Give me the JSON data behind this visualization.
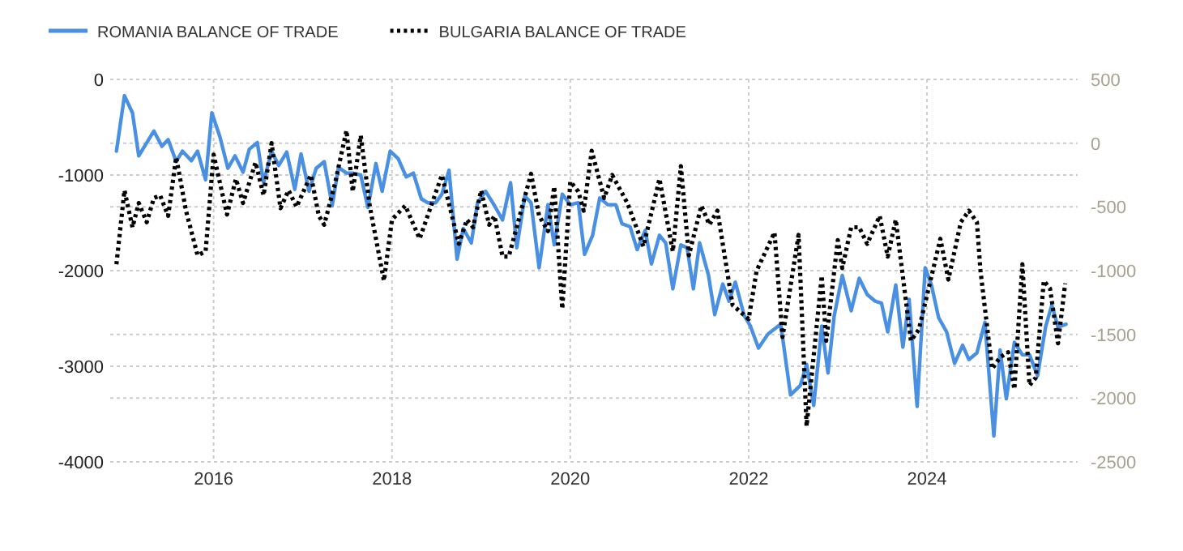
{
  "chart_data": {
    "type": "line",
    "grid": true,
    "legend": "top left",
    "xlim": [
      2014.84,
      2025.69
    ],
    "xticks": [
      2016,
      2018,
      2020,
      2022,
      2024
    ],
    "ylim": [
      -4000,
      0
    ],
    "yticks": [
      0,
      -1000,
      -2000,
      -3000,
      -4000
    ],
    "y2lim": [
      -2500,
      500
    ],
    "y2ticks": [
      500,
      0,
      -500,
      -1000,
      -1500,
      -2000,
      -2500
    ],
    "series": [
      {
        "name": "ROMANIA BALANCE OF TRADE",
        "color": "#4a90e2",
        "line_style": "solid",
        "x": [
          2014.91,
          2015.0,
          2015.09,
          2015.16,
          2015.33,
          2015.42,
          2015.49,
          2015.58,
          2015.65,
          2015.75,
          2015.82,
          2015.91,
          2015.98,
          2016.07,
          2016.16,
          2016.24,
          2016.33,
          2016.4,
          2016.49,
          2016.56,
          2016.65,
          2016.73,
          2016.82,
          2016.91,
          2016.98,
          2017.07,
          2017.15,
          2017.24,
          2017.33,
          2017.4,
          2017.49,
          2017.56,
          2017.65,
          2017.73,
          2017.82,
          2017.89,
          2017.98,
          2018.07,
          2018.16,
          2018.24,
          2018.33,
          2018.4,
          2018.49,
          2018.56,
          2018.64,
          2018.73,
          2018.8,
          2018.89,
          2018.96,
          2019.05,
          2019.15,
          2019.24,
          2019.33,
          2019.4,
          2019.49,
          2019.56,
          2019.65,
          2019.75,
          2019.82,
          2019.91,
          2020.0,
          2020.09,
          2020.16,
          2020.25,
          2020.33,
          2020.42,
          2020.51,
          2020.58,
          2020.67,
          2020.75,
          2020.84,
          2020.91,
          2021.0,
          2021.07,
          2021.15,
          2021.24,
          2021.31,
          2021.38,
          2021.45,
          2021.55,
          2021.62,
          2021.71,
          2021.78,
          2021.85,
          2021.95,
          2022.02,
          2022.11,
          2022.22,
          2022.36,
          2022.47,
          2022.58,
          2022.65,
          2022.73,
          2022.82,
          2022.89,
          2022.96,
          2023.05,
          2023.15,
          2023.24,
          2023.33,
          2023.42,
          2023.49,
          2023.56,
          2023.65,
          2023.73,
          2023.8,
          2023.89,
          2023.98,
          2024.05,
          2024.13,
          2024.22,
          2024.31,
          2024.4,
          2024.47,
          2024.56,
          2024.65,
          2024.75,
          2024.82,
          2024.89,
          2024.98,
          2025.07,
          2025.15,
          2025.24,
          2025.33,
          2025.4,
          2025.47,
          2025.56
        ],
        "values": [
          -750,
          -170,
          -350,
          -800,
          -540,
          -700,
          -630,
          -860,
          -750,
          -850,
          -750,
          -1050,
          -350,
          -600,
          -930,
          -800,
          -970,
          -730,
          -660,
          -1080,
          -750,
          -900,
          -760,
          -1150,
          -780,
          -1170,
          -930,
          -860,
          -1320,
          -920,
          -980,
          -980,
          -1000,
          -1340,
          -880,
          -1170,
          -750,
          -830,
          -1020,
          -980,
          -1250,
          -1290,
          -1290,
          -1200,
          -950,
          -1880,
          -1560,
          -1710,
          -1290,
          -1170,
          -1320,
          -1470,
          -1080,
          -1760,
          -1220,
          -1290,
          -1970,
          -1310,
          -1730,
          -1200,
          -1310,
          -1290,
          -1830,
          -1630,
          -1240,
          -1310,
          -1310,
          -1510,
          -1540,
          -1780,
          -1580,
          -1930,
          -1630,
          -1710,
          -2190,
          -1730,
          -1760,
          -2190,
          -1710,
          -2050,
          -2460,
          -2140,
          -2320,
          -2120,
          -2470,
          -2580,
          -2810,
          -2660,
          -2560,
          -3300,
          -3200,
          -2980,
          -3410,
          -2580,
          -3070,
          -2470,
          -2050,
          -2420,
          -2080,
          -2250,
          -2320,
          -2340,
          -2640,
          -2150,
          -2800,
          -2300,
          -3420,
          -1970,
          -2150,
          -2490,
          -2640,
          -2970,
          -2780,
          -2930,
          -2860,
          -2540,
          -3730,
          -2830,
          -3340,
          -2750,
          -2880,
          -2880,
          -3100,
          -2590,
          -2360,
          -2590,
          -2560
        ]
      },
      {
        "name": "BULGARIA BALANCE OF TRADE",
        "color": "#000000",
        "line_style": "dotted",
        "axis": "y2",
        "x": [
          2014.91,
          2015.0,
          2015.09,
          2015.16,
          2015.25,
          2015.33,
          2015.4,
          2015.49,
          2015.58,
          2015.69,
          2015.82,
          2015.91,
          2016.0,
          2016.15,
          2016.25,
          2016.33,
          2016.47,
          2016.56,
          2016.65,
          2016.75,
          2016.84,
          2016.93,
          2017.09,
          2017.18,
          2017.24,
          2017.36,
          2017.49,
          2017.56,
          2017.65,
          2017.75,
          2017.91,
          2018.0,
          2018.15,
          2018.31,
          2018.56,
          2018.75,
          2018.84,
          2018.91,
          2019.0,
          2019.09,
          2019.15,
          2019.24,
          2019.31,
          2019.56,
          2019.65,
          2019.75,
          2019.82,
          2019.91,
          2020.0,
          2020.09,
          2020.15,
          2020.24,
          2020.38,
          2020.47,
          2020.64,
          2020.82,
          2021.0,
          2021.15,
          2021.24,
          2021.33,
          2021.47,
          2021.56,
          2021.65,
          2021.82,
          2022.0,
          2022.09,
          2022.29,
          2022.38,
          2022.56,
          2022.65,
          2022.82,
          2022.87,
          2023.0,
          2023.05,
          2023.15,
          2023.24,
          2023.33,
          2023.47,
          2023.56,
          2023.65,
          2023.82,
          2023.91,
          2024.15,
          2024.24,
          2024.38,
          2024.47,
          2024.56,
          2024.6,
          2024.73,
          2024.82,
          2024.91,
          2024.98,
          2025.07,
          2025.15,
          2025.22,
          2025.31,
          2025.38,
          2025.47,
          2025.55
        ],
        "values": [
          -950,
          -370,
          -660,
          -470,
          -620,
          -430,
          -410,
          -570,
          -110,
          -530,
          -880,
          -850,
          -90,
          -560,
          -280,
          -470,
          -150,
          -410,
          0,
          -510,
          -370,
          -500,
          -250,
          -570,
          -640,
          -320,
          100,
          -380,
          60,
          -490,
          -1080,
          -600,
          -490,
          -750,
          -250,
          -790,
          -600,
          -660,
          -370,
          -640,
          -570,
          -890,
          -890,
          -240,
          -570,
          -690,
          -340,
          -1300,
          -300,
          -380,
          -530,
          -60,
          -430,
          -250,
          -470,
          -810,
          -280,
          -850,
          -180,
          -880,
          -490,
          -640,
          -530,
          -1270,
          -1380,
          -1000,
          -700,
          -1520,
          -720,
          -2220,
          -1040,
          -1550,
          -760,
          -980,
          -660,
          -660,
          -790,
          -570,
          -890,
          -600,
          -1550,
          -1460,
          -750,
          -1070,
          -620,
          -530,
          -620,
          -1000,
          -1770,
          -1680,
          -1640,
          -1930,
          -950,
          -1900,
          -1840,
          -1080,
          -1140,
          -1570,
          -1100
        ]
      }
    ]
  }
}
